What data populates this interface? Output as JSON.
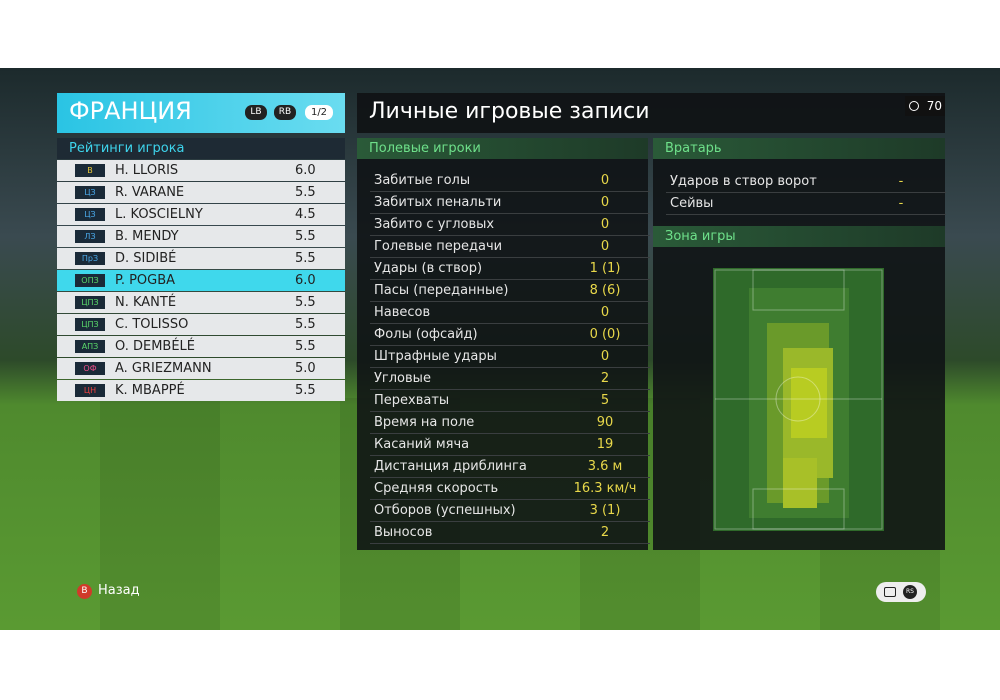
{
  "team_panel": {
    "team": "ФРАНЦИЯ",
    "buttons": [
      "LB",
      "RB"
    ],
    "page": "1/2",
    "subtitle": "Рейтинги игрока",
    "players": [
      {
        "position": "В",
        "name": "H. LLORIS",
        "rating": "6.0",
        "color": "#e8c83a"
      },
      {
        "position": "ЦЗ",
        "name": "R. VARANE",
        "rating": "5.5",
        "color": "#4aa8e8"
      },
      {
        "position": "ЦЗ",
        "name": "L. KOSCIELNY",
        "rating": "4.5",
        "color": "#4aa8e8"
      },
      {
        "position": "ЛЗ",
        "name": "B. MENDY",
        "rating": "5.5",
        "color": "#4aa8e8"
      },
      {
        "position": "ПрЗ",
        "name": "D. SIDIBÉ",
        "rating": "5.5",
        "color": "#4aa8e8"
      },
      {
        "position": "ОПЗ",
        "name": "P. POGBA",
        "rating": "6.0",
        "color": "#5ad86a"
      },
      {
        "position": "ЦПЗ",
        "name": "N. KANTÉ",
        "rating": "5.5",
        "color": "#5ad86a"
      },
      {
        "position": "ЦПЗ",
        "name": "C. TOLISSO",
        "rating": "5.5",
        "color": "#5ad86a"
      },
      {
        "position": "АПЗ",
        "name": "O. DEMBÉLÉ",
        "rating": "5.5",
        "color": "#5ad86a"
      },
      {
        "position": "ОФ",
        "name": "A. GRIEZMANN",
        "rating": "5.0",
        "color": "#f0508a"
      },
      {
        "position": "ЦН",
        "name": "K. MBAPPÉ",
        "rating": "5.5",
        "color": "#f04040"
      }
    ],
    "selected": 5
  },
  "header": {
    "title": "Личные игровые записи",
    "timer": "70"
  },
  "field_players": {
    "title": "Полевые игроки",
    "rows": [
      [
        "Забитые голы",
        "0"
      ],
      [
        "Забитых пенальти",
        "0"
      ],
      [
        "Забито с угловых",
        "0"
      ],
      [
        "Голевые передачи",
        "0"
      ],
      [
        "Удары (в створ)",
        "1 (1)"
      ],
      [
        "Пасы (переданные)",
        "8 (6)"
      ],
      [
        "Навесов",
        "0"
      ],
      [
        "Фолы (офсайд)",
        "0 (0)"
      ],
      [
        "Штрафные удары",
        "0"
      ],
      [
        "Угловые",
        "2"
      ],
      [
        "Перехваты",
        "5"
      ],
      [
        "Время на поле",
        "90"
      ],
      [
        "Касаний мяча",
        "19"
      ],
      [
        "Дистанция дриблинга",
        "3.6 м"
      ],
      [
        "Средняя скорость",
        "16.3 км/ч"
      ],
      [
        "Отборов (успешных)",
        "3 (1)"
      ],
      [
        "Выносов",
        "2"
      ]
    ]
  },
  "goalkeeper": {
    "title": "Вратарь",
    "rows": [
      [
        "Ударов в створ ворот",
        "-"
      ],
      [
        "Сейвы",
        "-"
      ]
    ]
  },
  "zone": {
    "title": "Зона игры"
  },
  "footer": {
    "back_button": "B",
    "back": "Назад",
    "icons": [
      "RS"
    ]
  }
}
